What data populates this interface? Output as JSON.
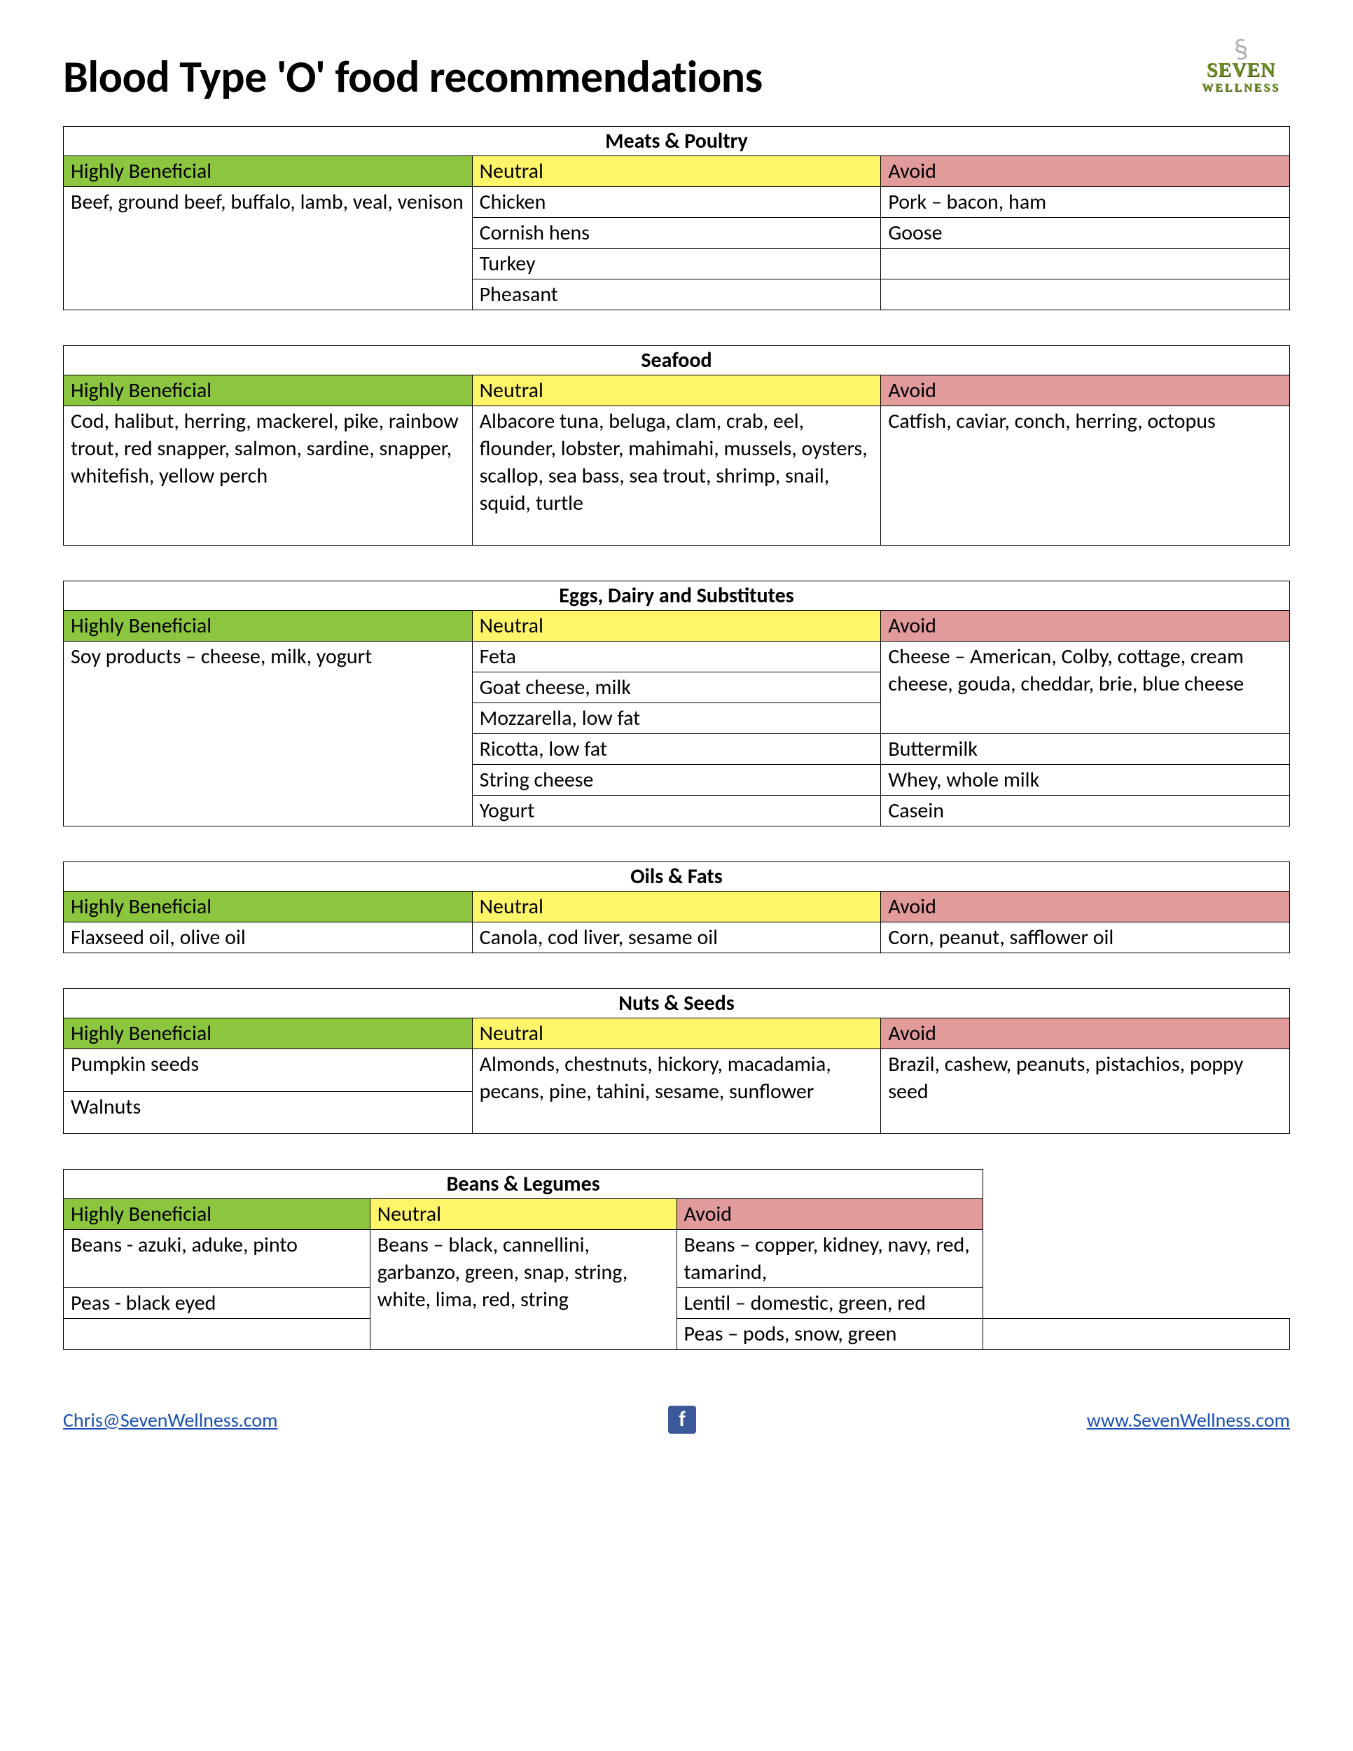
{
  "page_title": "Blood Type 'O' food recommendations",
  "logo": {
    "top": "SEVEN",
    "bottom": "WELLNESS"
  },
  "colors": {
    "beneficial_bg": "#8cc63f",
    "neutral_bg": "#fff568",
    "avoid_bg": "#e19b9b",
    "border": "#000000",
    "link": "#1a4fb3"
  },
  "column_labels": {
    "beneficial": "Highly Beneficial",
    "neutral": "Neutral",
    "avoid": "Avoid"
  },
  "sections": [
    {
      "title": "Meats & Poultry",
      "rows": [
        {
          "b": "Beef, ground beef, buffalo, lamb, veal, venison",
          "n": "Chicken",
          "a": "Pork – bacon, ham",
          "b_rowspan": 4
        },
        {
          "n": "Cornish hens",
          "a": "Goose"
        },
        {
          "n": "Turkey",
          "a": ""
        },
        {
          "n": "Pheasant",
          "a": ""
        }
      ]
    },
    {
      "title": "Seafood",
      "rows": [
        {
          "b": "Cod, halibut, herring, mackerel, pike, rainbow trout, red snapper, salmon, sardine, snapper, whitefish, yellow perch",
          "n": "Albacore tuna, beluga, clam, crab, eel, flounder, lobster, mahimahi, mussels, oysters, scallop, sea bass, sea trout, shrimp, snail, squid, turtle",
          "a": "Catfish, caviar, conch, herring, octopus",
          "tall": true
        }
      ]
    },
    {
      "title": "Eggs, Dairy and Substitutes",
      "rows": [
        {
          "b": "Soy products – cheese, milk, yogurt",
          "n": "Feta",
          "a": "Cheese – American, Colby, cottage, cream cheese, gouda, cheddar, brie, blue cheese",
          "b_rowspan": 6,
          "a_rowspan": 3
        },
        {
          "n": "Goat cheese, milk"
        },
        {
          "n": "Mozzarella, low fat"
        },
        {
          "n": "Ricotta, low fat",
          "a": "Buttermilk"
        },
        {
          "n": "String cheese",
          "a": "Whey, whole milk"
        },
        {
          "n": "Yogurt",
          "a": "Casein"
        }
      ]
    },
    {
      "title": "Oils & Fats",
      "rows": [
        {
          "b": "Flaxseed oil, olive oil",
          "n": "Canola, cod liver, sesame oil",
          "a": "Corn, peanut, safflower oil"
        }
      ]
    },
    {
      "title": "Nuts & Seeds",
      "rows": [
        {
          "b": "Pumpkin seeds",
          "n": "Almonds, chestnuts, hickory, macadamia,  pecans, pine, tahini, sesame, sunflower",
          "a": "Brazil, cashew, peanuts, pistachios, poppy seed",
          "n_rowspan": 2,
          "a_rowspan": 2,
          "n_tall": true
        },
        {
          "b": "Walnuts"
        }
      ]
    },
    {
      "title": "Beans & Legumes",
      "rows": [
        {
          "b": "Beans - azuki, aduke, pinto",
          "n": "Beans – black, cannellini, garbanzo, green, snap, string, white, lima, red, string",
          "a": "Beans – copper, kidney, navy, red, tamarind,",
          "n_rowspan": 3
        },
        {
          "b": "Peas - black eyed",
          "a": "Lentil – domestic, green, red"
        },
        {
          "b": "",
          "n": "Peas – pods, snow, green",
          "a": "",
          "new_n": true
        }
      ]
    }
  ],
  "footer": {
    "email": "Chris@SevenWellness.com",
    "website": "www.SevenWellness.com"
  }
}
